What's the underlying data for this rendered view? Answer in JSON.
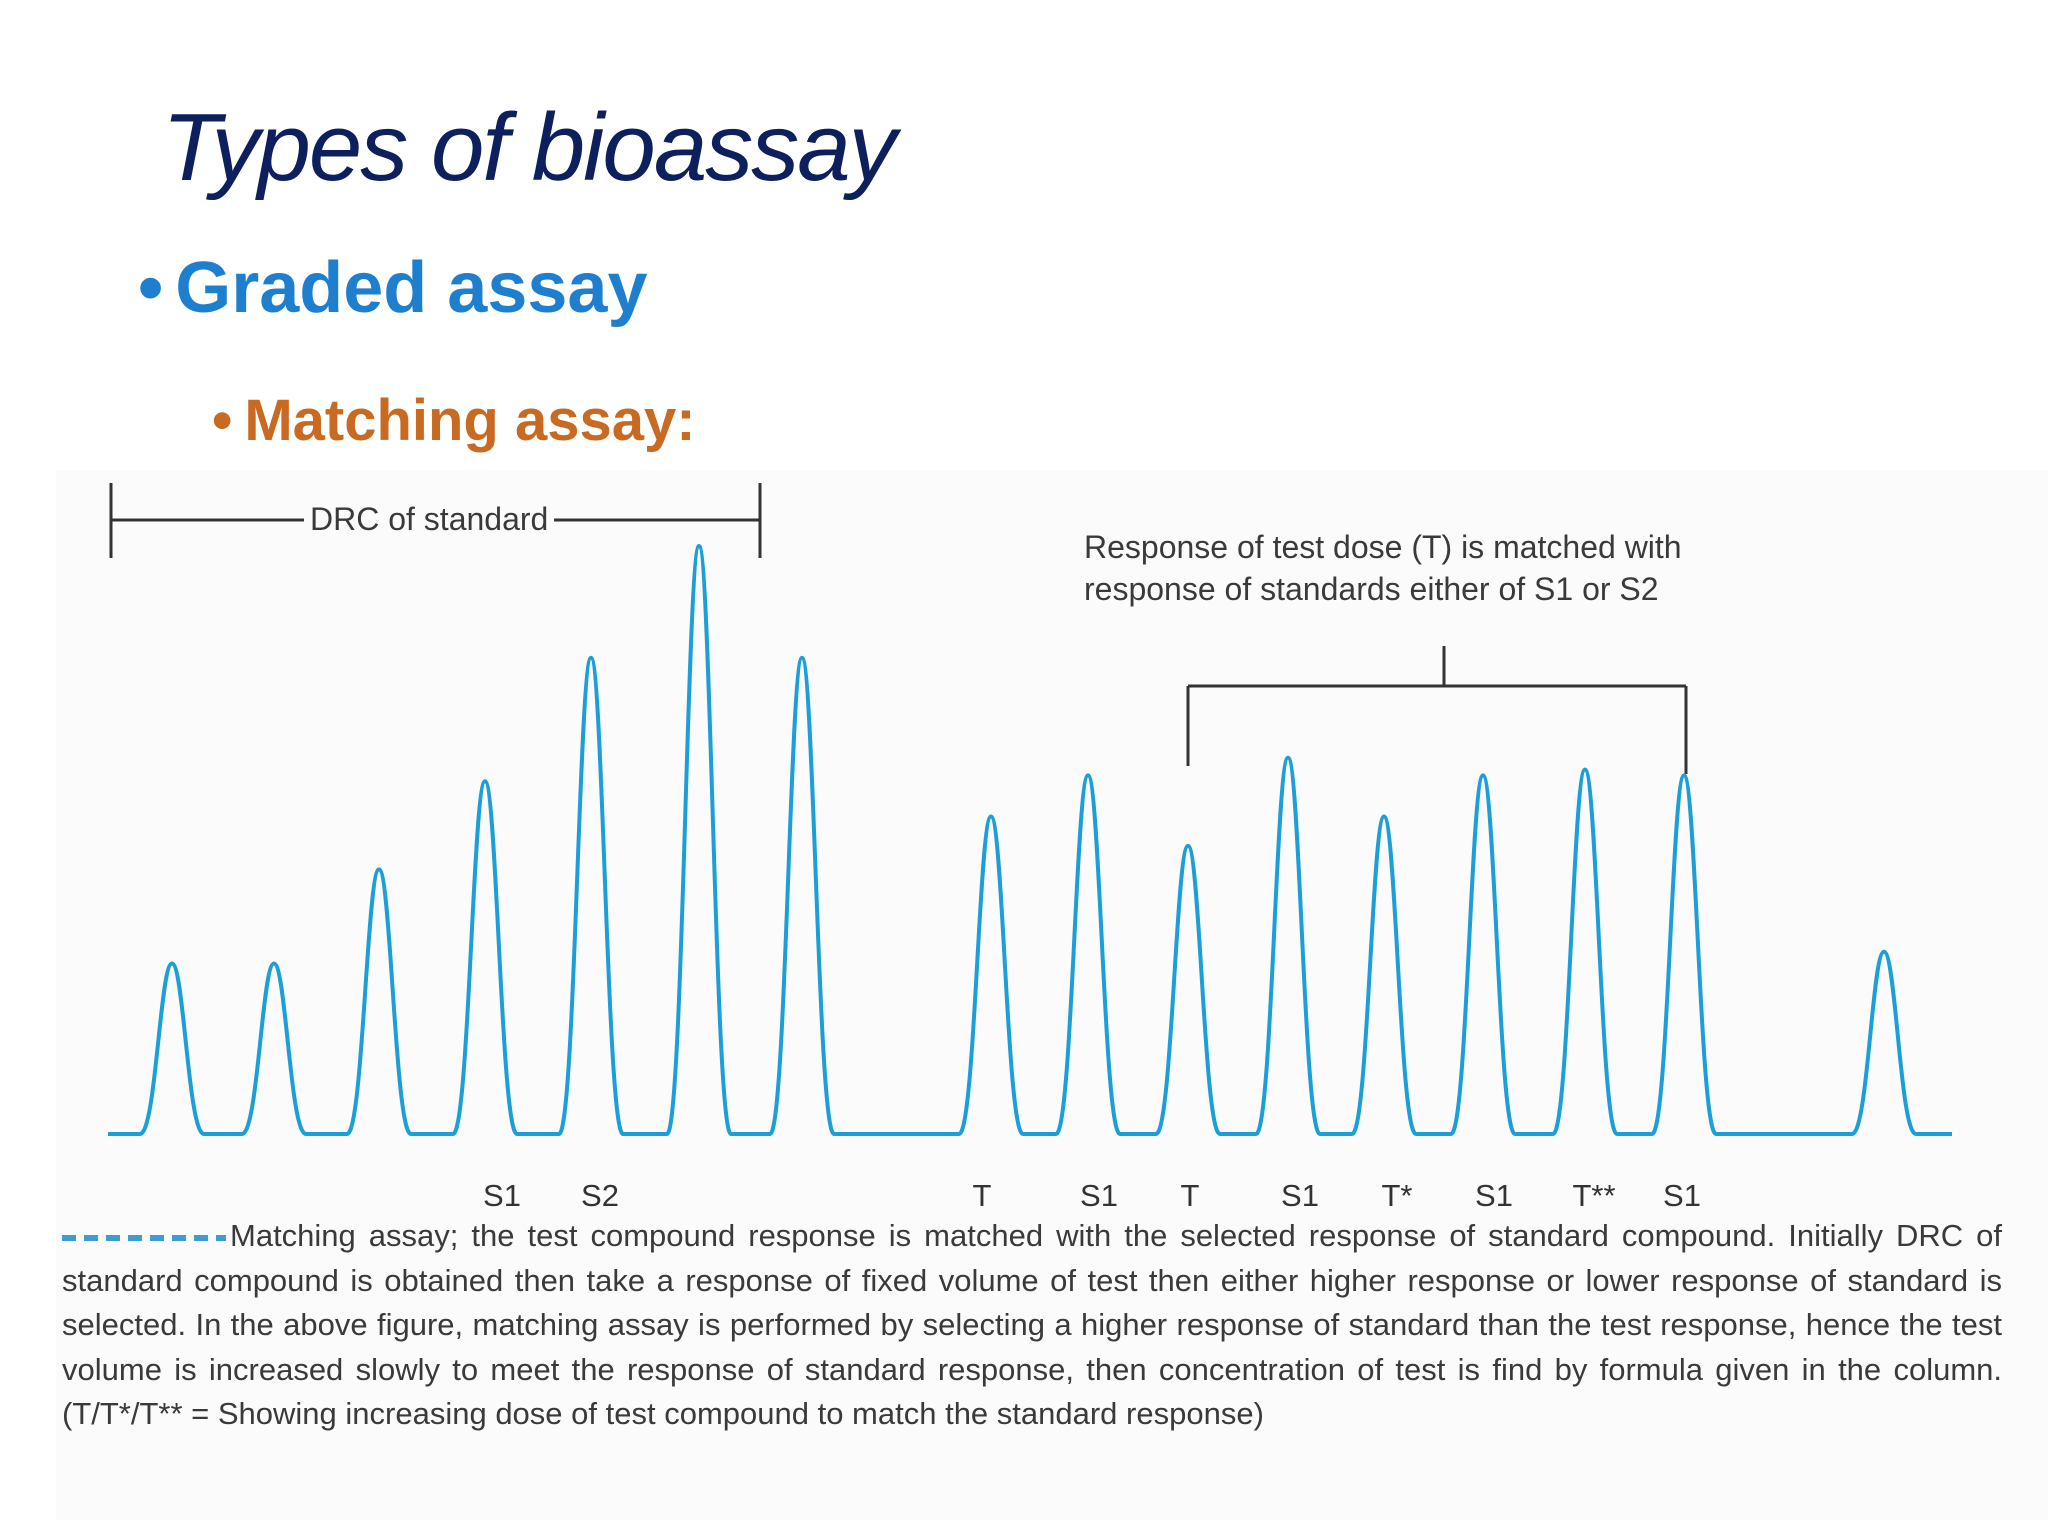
{
  "slide": {
    "title": "Types of bioassay",
    "bullet_level1": "Graded assay",
    "bullet_level2": "Matching assay:"
  },
  "figure": {
    "drc_label": "DRC of standard",
    "annotation_line1": "Response of test dose (T) is matched with",
    "annotation_line2": "response of standards either of S1 or S2",
    "peak_labels": [
      "S1",
      "S2",
      "T",
      "S1",
      "T",
      "S1",
      "T*",
      "S1",
      "T**",
      "S1"
    ],
    "peak_heights_relative": [
      0.29,
      0.29,
      0.45,
      0.6,
      0.81,
      1.0,
      0.81,
      0.54,
      0.61,
      0.49,
      0.64,
      0.54,
      0.61,
      0.62,
      0.61,
      0.31
    ],
    "trace_color": "#1c9fd6",
    "caption": "Matching assay; the test compound response is matched with the selected response of standard compound. Initially DRC of standard compound is obtained then take a response of fixed volume of test then either higher response or lower response of standard is selected. In the above figure, matching assay is performed by selecting a higher response of standard than the test response, hence the test volume is increased slowly to meet the response of standard response, then concentration of test is find by formula given in the column. (T/T*/T** = Showing increasing dose of test compound to match the standard response)"
  }
}
